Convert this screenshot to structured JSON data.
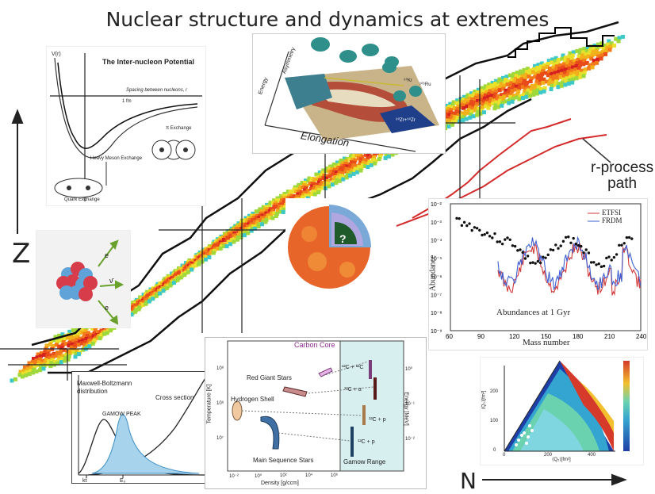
{
  "title": "Nuclear structure and dynamics at extremes",
  "axes": {
    "z_label": "Z",
    "n_label": "N"
  },
  "r_process": {
    "line1": "r-process",
    "line2": "path"
  },
  "potential": {
    "title": "The Inter-nucleon Potential",
    "v_label": "V(r)",
    "spacing_label": "Spacing between nucleons, r",
    "fm_label": "1 fm",
    "pi_exchange": "π Exchange",
    "heavy_meson": "Heavy Meson Exchange",
    "quark_exchange": "Quark Exchange"
  },
  "fission": {
    "elongation": "Elongation",
    "energy": "Energy",
    "asymmetry": "Asymmetry",
    "label_a": "⁹⁰Kr",
    "label_b": "¹⁰⁶Ru",
    "label_c": "⁹⁰Zr+⁹⁰Zr"
  },
  "neutron_star": {
    "question": "?"
  },
  "abundance": {
    "legend": [
      "ETFSI",
      "FRDM"
    ],
    "legend_colors": [
      "#d23a3a",
      "#3f5fd0"
    ],
    "y_label": "Abundance",
    "x_label": "Mass number",
    "annotation": "Abundances at 1 Gyr",
    "x_ticks": [
      "60",
      "90",
      "120",
      "150",
      "180",
      "210",
      "240"
    ],
    "y_ticks": [
      "10⁻²",
      "10⁻³",
      "10⁻⁴",
      "10⁻⁵",
      "10⁻⁶",
      "10⁻⁷",
      "10⁻⁸",
      "10⁻⁹"
    ]
  },
  "gamow": {
    "maxwell": "Maxwell-Boltzmann",
    "distribution": "distribution",
    "cross_section": "Cross section",
    "peak": "GAMOW PEAK",
    "kt": "kt",
    "e0": "E₀"
  },
  "burning": {
    "carbon_core": "Carbon Core",
    "red_giant": "Red Giant Stars",
    "hydrogen_shell": "Hydrogen Shell",
    "main_sequence": "Main Sequence Stars",
    "gamow_range": "Gamow Range",
    "temperature": "Temperature [K]",
    "energy": "Energy [MeV]",
    "density": "Density [g/ccm]",
    "r1": "¹²C + ¹²C",
    "r2": "¹²C + α",
    "r3": "¹²C + p",
    "r4": "¹²C + p",
    "t_ticks": [
      "10⁸",
      "10⁸",
      "10⁷"
    ],
    "e_ticks": [
      "10⁰",
      "10⁻¹",
      "10⁻²"
    ],
    "d_ticks": [
      "10⁻²",
      "10⁰",
      "10²",
      "10⁴",
      "10⁶"
    ]
  },
  "triangle": {
    "y_label": "⟨Q₀⟩[fm²]",
    "x_label": "⟨Q₂⟩[fm²]",
    "x_ticks": [
      "0",
      "200",
      "400"
    ],
    "y_ticks": [
      "0",
      "100",
      "200"
    ]
  }
}
